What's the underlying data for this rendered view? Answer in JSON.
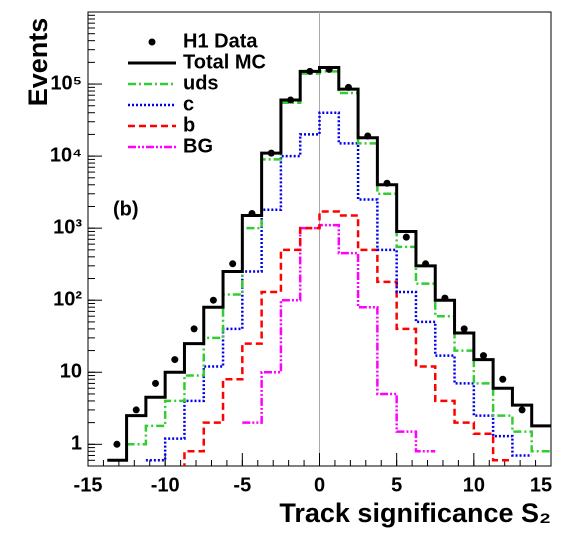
{
  "chart_data": {
    "type": "histogram",
    "xlabel": "Track significance S₂",
    "ylabel": "Events",
    "annotation": "(b)",
    "log_y": true,
    "legend": "upper left",
    "bins": [
      -15,
      -13.75,
      -12.5,
      -11.25,
      -10,
      -8.75,
      -7.5,
      -6.25,
      -5,
      -3.75,
      -2.5,
      -1.25,
      0,
      1.25,
      2.5,
      3.75,
      5,
      6.25,
      7.5,
      8.75,
      10,
      11.25,
      12.5,
      13.75,
      15
    ],
    "xlim": [
      -15,
      15
    ],
    "xticks": [
      -15,
      -10,
      -5,
      0,
      5,
      10,
      15
    ],
    "ylim": [
      0.5,
      1000000
    ],
    "yticks": [
      1,
      10,
      {
        "value": 100,
        "label": "10²"
      },
      {
        "value": 1000,
        "label": "10³"
      },
      {
        "value": 10000,
        "label": "10⁴"
      },
      {
        "value": 100000,
        "label": "10⁵"
      }
    ],
    "series": [
      {
        "name": "H1 Data",
        "color": "#000000",
        "style": "points",
        "values": [
          null,
          1,
          3,
          7,
          15,
          40,
          100,
          320,
          1600,
          11000,
          60000,
          150000,
          160000,
          90000,
          19000,
          4200,
          750,
          320,
          107,
          40,
          17,
          8,
          3,
          null
        ]
      },
      {
        "name": "Total MC",
        "color": "#000000",
        "style": "step",
        "dash": "solid",
        "values": [
          null,
          0.6,
          2.5,
          4.5,
          10,
          25,
          80,
          250,
          1500,
          11000,
          60000,
          150000,
          170000,
          85000,
          18000,
          4000,
          900,
          300,
          100,
          35,
          15,
          6,
          3.5,
          1.8
        ]
      },
      {
        "name": "uds",
        "color": "#33cc33",
        "style": "step",
        "dash": "dashdot",
        "values": [
          null,
          null,
          1,
          1.8,
          4,
          9,
          30,
          120,
          1000,
          9000,
          55000,
          140000,
          150000,
          75000,
          15000,
          3000,
          550,
          170,
          60,
          20,
          7,
          2.5,
          1.5,
          0.8
        ]
      },
      {
        "name": "c",
        "color": "#0000ee",
        "style": "step",
        "dash": "dotted",
        "values": [
          null,
          null,
          null,
          0.6,
          1.2,
          4,
          12,
          40,
          250,
          1800,
          10000,
          20000,
          40000,
          15000,
          2500,
          500,
          130,
          50,
          17,
          7,
          2.5,
          1.3,
          0.7,
          null
        ]
      },
      {
        "name": "b",
        "color": "#ff0000",
        "style": "step",
        "dash": "dashed",
        "values": [
          null,
          null,
          null,
          null,
          0.4,
          0.8,
          2,
          8,
          25,
          130,
          500,
          1000,
          1700,
          1500,
          500,
          180,
          40,
          12,
          4,
          2,
          1.4,
          0.6,
          null,
          null
        ]
      },
      {
        "name": "BG",
        "color": "#ff00ff",
        "style": "step",
        "dash": "dashdotdot",
        "values": [
          null,
          null,
          null,
          null,
          null,
          null,
          null,
          null,
          2,
          10,
          100,
          1000,
          1100,
          450,
          80,
          5,
          1.5,
          0.8,
          null,
          null,
          null,
          null,
          null,
          null
        ]
      }
    ]
  }
}
